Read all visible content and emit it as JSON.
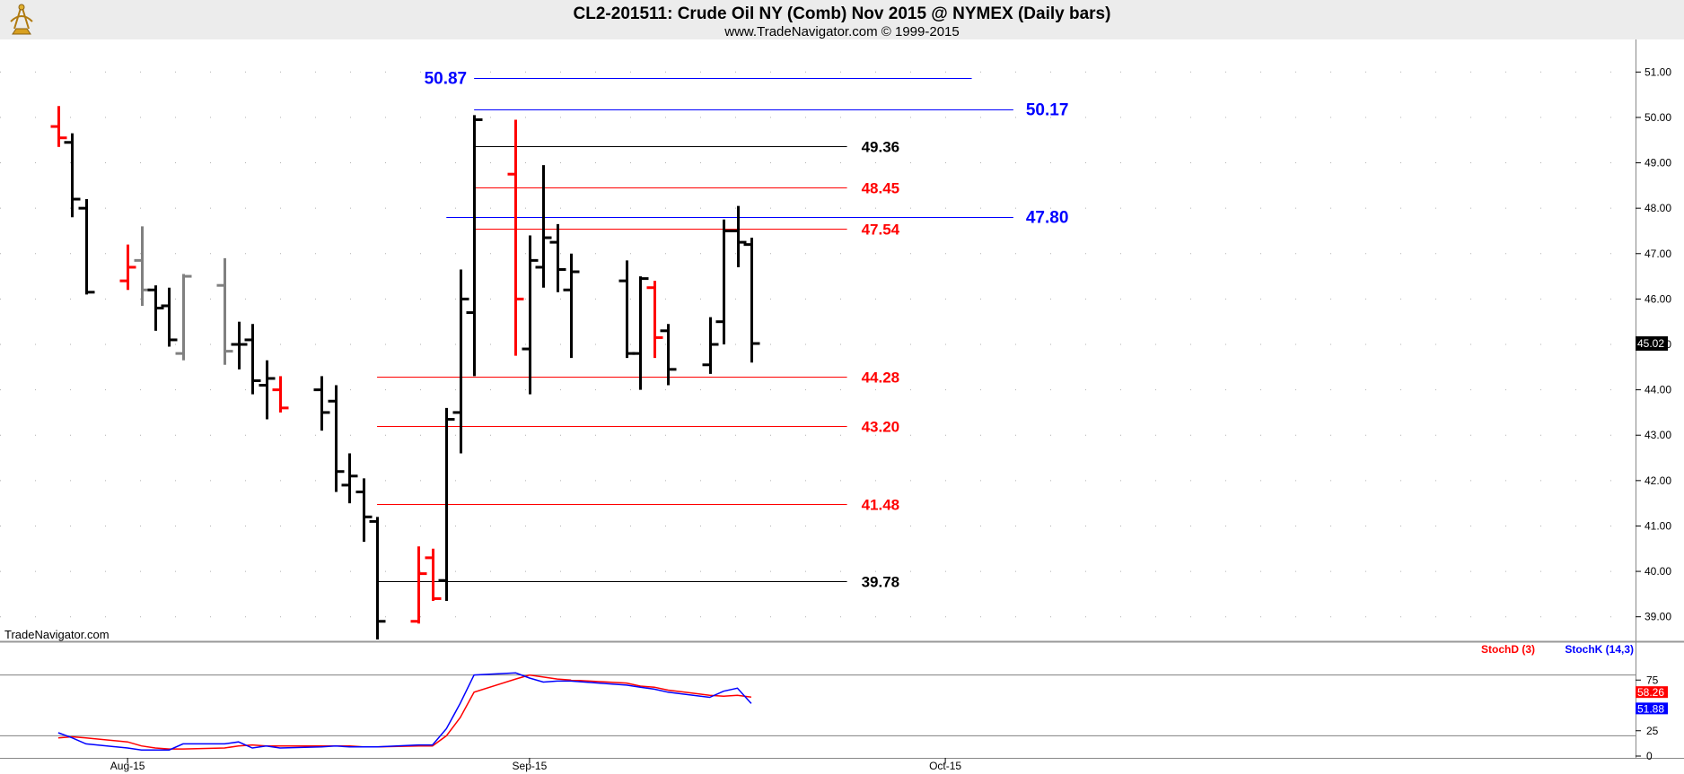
{
  "header": {
    "title": "CL2-201511:  Crude Oil NY (Comb) Nov 2015 @ NYMEX  (Daily bars)",
    "subtitle": "www.TradeNavigator.com © 1999-2015",
    "watermark": "TradeNavigator.com",
    "logo_icon": "sextant-logo-icon"
  },
  "colors": {
    "background": "#ffffff",
    "bar_default": "#000000",
    "bar_down": "#ff0000",
    "bar_up": "#00cc00",
    "bar_neutral": "#808080",
    "level_red": "#ff0000",
    "level_blue": "#0000ff",
    "level_black": "#000000",
    "stoch_d": "#ff0000",
    "stoch_k": "#0000ff"
  },
  "chart_data": [
    {
      "type": "ohlc",
      "title": "CL2-201511:  Crude Oil NY (Comb) Nov 2015 @ NYMEX  (Daily bars)",
      "ylim": [
        38.5,
        51.5
      ],
      "yticks": [
        "39.00",
        "40.00",
        "41.00",
        "42.00",
        "43.00",
        "44.00",
        "45.00",
        "46.00",
        "47.00",
        "48.00",
        "49.00",
        "50.00",
        "51.00"
      ],
      "xticks": [
        {
          "label": "Aug-15",
          "date": "2015-08-03"
        },
        {
          "label": "Sep-15",
          "date": "2015-09-01"
        },
        {
          "label": "Oct-15",
          "date": "2015-10-01"
        }
      ],
      "x_range": [
        "2015-07-28",
        "2015-10-08"
      ],
      "last_value": "45.02",
      "grid": "dotted",
      "bars": [
        {
          "date": "2015-07-29",
          "open": 49.8,
          "high": 50.25,
          "low": 49.35,
          "close": 49.55,
          "color": "red"
        },
        {
          "date": "2015-07-30",
          "open": 49.45,
          "high": 49.65,
          "low": 47.8,
          "close": 48.2,
          "color": "black"
        },
        {
          "date": "2015-07-31",
          "open": 48.0,
          "high": 48.2,
          "low": 46.1,
          "close": 46.15,
          "color": "black"
        },
        {
          "date": "2015-08-03",
          "open": 46.4,
          "high": 47.2,
          "low": 46.2,
          "close": 46.7,
          "color": "red"
        },
        {
          "date": "2015-08-04",
          "open": 46.85,
          "high": 47.6,
          "low": 45.85,
          "close": 46.2,
          "color": "gray"
        },
        {
          "date": "2015-08-05",
          "open": 46.2,
          "high": 46.3,
          "low": 45.3,
          "close": 45.8,
          "color": "black"
        },
        {
          "date": "2015-08-06",
          "open": 45.85,
          "high": 46.25,
          "low": 44.95,
          "close": 45.1,
          "color": "black"
        },
        {
          "date": "2015-08-07",
          "open": 44.8,
          "high": 46.55,
          "low": 44.65,
          "close": 46.5,
          "color": "gray"
        },
        {
          "date": "2015-08-10",
          "open": 46.3,
          "high": 46.9,
          "low": 44.55,
          "close": 44.85,
          "color": "gray"
        },
        {
          "date": "2015-08-11",
          "open": 45.0,
          "high": 45.5,
          "low": 44.45,
          "close": 45.0,
          "color": "black"
        },
        {
          "date": "2015-08-12",
          "open": 45.1,
          "high": 45.45,
          "low": 43.9,
          "close": 44.2,
          "color": "black"
        },
        {
          "date": "2015-08-13",
          "open": 44.1,
          "high": 44.65,
          "low": 43.35,
          "close": 44.25,
          "color": "black"
        },
        {
          "date": "2015-08-14",
          "open": 44.0,
          "high": 44.3,
          "low": 43.5,
          "close": 43.6,
          "color": "red"
        },
        {
          "date": "2015-08-17",
          "open": 44.0,
          "high": 44.3,
          "low": 43.1,
          "close": 43.5,
          "color": "black"
        },
        {
          "date": "2015-08-18",
          "open": 43.75,
          "high": 44.1,
          "low": 41.75,
          "close": 42.2,
          "color": "black"
        },
        {
          "date": "2015-08-19",
          "open": 41.9,
          "high": 42.6,
          "low": 41.5,
          "close": 42.1,
          "color": "black"
        },
        {
          "date": "2015-08-20",
          "open": 41.75,
          "high": 42.05,
          "low": 40.65,
          "close": 41.2,
          "color": "black"
        },
        {
          "date": "2015-08-21",
          "open": 41.1,
          "high": 41.2,
          "low": 38.5,
          "close": 38.9,
          "color": "black"
        },
        {
          "date": "2015-08-24",
          "open": 38.9,
          "high": 40.55,
          "low": 38.85,
          "close": 39.95,
          "color": "red"
        },
        {
          "date": "2015-08-25",
          "open": 40.3,
          "high": 40.5,
          "low": 39.35,
          "close": 39.4,
          "color": "red"
        },
        {
          "date": "2015-08-26",
          "open": 39.8,
          "high": 43.6,
          "low": 39.35,
          "close": 43.35,
          "color": "black"
        },
        {
          "date": "2015-08-27",
          "open": 43.5,
          "high": 46.65,
          "low": 42.6,
          "close": 46.0,
          "color": "black"
        },
        {
          "date": "2015-08-28",
          "open": 45.7,
          "high": 50.05,
          "low": 44.3,
          "close": 49.95,
          "color": "black"
        },
        {
          "date": "2015-08-31",
          "open": 48.75,
          "high": 49.95,
          "low": 44.75,
          "close": 46.0,
          "color": "red"
        },
        {
          "date": "2015-09-01",
          "open": 44.9,
          "high": 47.4,
          "low": 43.9,
          "close": 46.85,
          "color": "black"
        },
        {
          "date": "2015-09-02",
          "open": 46.7,
          "high": 48.95,
          "low": 46.25,
          "close": 47.35,
          "color": "black"
        },
        {
          "date": "2015-09-03",
          "open": 47.25,
          "high": 47.65,
          "low": 46.15,
          "close": 46.65,
          "color": "black"
        },
        {
          "date": "2015-09-04",
          "open": 46.2,
          "high": 47.0,
          "low": 44.7,
          "close": 46.6,
          "color": "black"
        },
        {
          "date": "2015-09-08",
          "open": 46.4,
          "high": 46.85,
          "low": 44.7,
          "close": 44.8,
          "color": "black"
        },
        {
          "date": "2015-09-09",
          "open": 44.8,
          "high": 46.5,
          "low": 44.0,
          "close": 46.45,
          "color": "black"
        },
        {
          "date": "2015-09-10",
          "open": 46.25,
          "high": 46.4,
          "low": 44.7,
          "close": 45.15,
          "color": "red"
        },
        {
          "date": "2015-09-11",
          "open": 45.3,
          "high": 45.45,
          "low": 44.1,
          "close": 44.45,
          "color": "black"
        },
        {
          "date": "2015-09-14",
          "open": 44.55,
          "high": 45.6,
          "low": 44.35,
          "close": 45.0,
          "color": "black"
        },
        {
          "date": "2015-09-15",
          "open": 45.5,
          "high": 47.75,
          "low": 45.0,
          "close": 47.5,
          "color": "black"
        },
        {
          "date": "2015-09-16",
          "open": 47.5,
          "high": 48.05,
          "low": 46.7,
          "close": 47.25,
          "color": "black"
        },
        {
          "date": "2015-09-17",
          "open": 47.2,
          "high": 47.35,
          "low": 44.6,
          "close": 45.02,
          "color": "black"
        }
      ],
      "levels": [
        {
          "value": 50.87,
          "label": "50.87",
          "color": "blue",
          "start": "2015-08-28",
          "end": "2015-10-02",
          "label_pos": "left"
        },
        {
          "value": 50.17,
          "label": "50.17",
          "color": "blue",
          "start": "2015-08-28",
          "end": "2015-10-05",
          "label_pos": "right-far"
        },
        {
          "value": 49.36,
          "label": "49.36",
          "color": "black",
          "start": "2015-08-28",
          "end": "2015-09-23",
          "label_pos": "right"
        },
        {
          "value": 48.45,
          "label": "48.45",
          "color": "red",
          "start": "2015-08-28",
          "end": "2015-09-23",
          "label_pos": "right"
        },
        {
          "value": 47.8,
          "label": "47.80",
          "color": "blue",
          "start": "2015-08-26",
          "end": "2015-10-05",
          "label_pos": "right-far"
        },
        {
          "value": 47.54,
          "label": "47.54",
          "color": "red",
          "start": "2015-08-28",
          "end": "2015-09-23",
          "label_pos": "right"
        },
        {
          "value": 44.28,
          "label": "44.28",
          "color": "red",
          "start": "2015-08-21",
          "end": "2015-09-23",
          "label_pos": "right"
        },
        {
          "value": 43.2,
          "label": "43.20",
          "color": "red",
          "start": "2015-08-21",
          "end": "2015-09-23",
          "label_pos": "right"
        },
        {
          "value": 41.48,
          "label": "41.48",
          "color": "red",
          "start": "2015-08-21",
          "end": "2015-09-23",
          "label_pos": "right"
        },
        {
          "value": 39.78,
          "label": "39.78",
          "color": "black",
          "start": "2015-08-21",
          "end": "2015-09-23",
          "label_pos": "right"
        }
      ]
    },
    {
      "type": "line",
      "title": "",
      "ylim": [
        0,
        100
      ],
      "yticks": [
        "0",
        "25",
        "75"
      ],
      "reference_lines": [
        20,
        80
      ],
      "legend": [
        "StochD (3)",
        "StochK (14,3)"
      ],
      "legend_position": "top-right",
      "last_values": {
        "StochD (3)": "58.26",
        "StochK (14,3)": "51.88"
      },
      "series": [
        {
          "name": "StochD (3)",
          "color": "red",
          "points": [
            [
              "2015-07-29",
              18
            ],
            [
              "2015-07-30",
              19
            ],
            [
              "2015-07-31",
              18
            ],
            [
              "2015-08-03",
              14
            ],
            [
              "2015-08-04",
              10
            ],
            [
              "2015-08-05",
              8
            ],
            [
              "2015-08-06",
              7
            ],
            [
              "2015-08-07",
              7
            ],
            [
              "2015-08-10",
              8
            ],
            [
              "2015-08-11",
              10
            ],
            [
              "2015-08-12",
              11
            ],
            [
              "2015-08-13",
              10
            ],
            [
              "2015-08-14",
              10
            ],
            [
              "2015-08-17",
              10
            ],
            [
              "2015-08-18",
              10
            ],
            [
              "2015-08-19",
              10
            ],
            [
              "2015-08-20",
              9
            ],
            [
              "2015-08-21",
              9
            ],
            [
              "2015-08-24",
              10
            ],
            [
              "2015-08-25",
              10
            ],
            [
              "2015-08-26",
              20
            ],
            [
              "2015-08-27",
              38
            ],
            [
              "2015-08-28",
              63
            ],
            [
              "2015-08-31",
              76
            ],
            [
              "2015-09-01",
              80
            ],
            [
              "2015-09-02",
              78
            ],
            [
              "2015-09-03",
              76
            ],
            [
              "2015-09-04",
              75
            ],
            [
              "2015-09-08",
              72
            ],
            [
              "2015-09-09",
              69
            ],
            [
              "2015-09-10",
              68
            ],
            [
              "2015-09-11",
              65
            ],
            [
              "2015-09-14",
              60
            ],
            [
              "2015-09-15",
              59
            ],
            [
              "2015-09-16",
              60
            ],
            [
              "2015-09-17",
              58.26
            ]
          ]
        },
        {
          "name": "StochK (14,3)",
          "color": "blue",
          "points": [
            [
              "2015-07-29",
              23
            ],
            [
              "2015-07-30",
              18
            ],
            [
              "2015-07-31",
              12
            ],
            [
              "2015-08-03",
              8
            ],
            [
              "2015-08-04",
              6
            ],
            [
              "2015-08-05",
              6
            ],
            [
              "2015-08-06",
              6
            ],
            [
              "2015-08-07",
              12
            ],
            [
              "2015-08-10",
              12
            ],
            [
              "2015-08-11",
              14
            ],
            [
              "2015-08-12",
              8
            ],
            [
              "2015-08-13",
              10
            ],
            [
              "2015-08-14",
              8
            ],
            [
              "2015-08-17",
              9
            ],
            [
              "2015-08-18",
              10
            ],
            [
              "2015-08-19",
              9
            ],
            [
              "2015-08-20",
              9
            ],
            [
              "2015-08-21",
              9
            ],
            [
              "2015-08-24",
              11
            ],
            [
              "2015-08-25",
              11
            ],
            [
              "2015-08-26",
              27
            ],
            [
              "2015-08-27",
              52
            ],
            [
              "2015-08-28",
              80
            ],
            [
              "2015-08-31",
              82
            ],
            [
              "2015-09-01",
              77
            ],
            [
              "2015-09-02",
              73
            ],
            [
              "2015-09-03",
              74
            ],
            [
              "2015-09-04",
              74
            ],
            [
              "2015-09-08",
              70
            ],
            [
              "2015-09-09",
              68
            ],
            [
              "2015-09-10",
              66
            ],
            [
              "2015-09-11",
              63
            ],
            [
              "2015-09-14",
              58
            ],
            [
              "2015-09-15",
              64
            ],
            [
              "2015-09-16",
              67
            ],
            [
              "2015-09-17",
              51.88
            ]
          ]
        }
      ]
    }
  ]
}
